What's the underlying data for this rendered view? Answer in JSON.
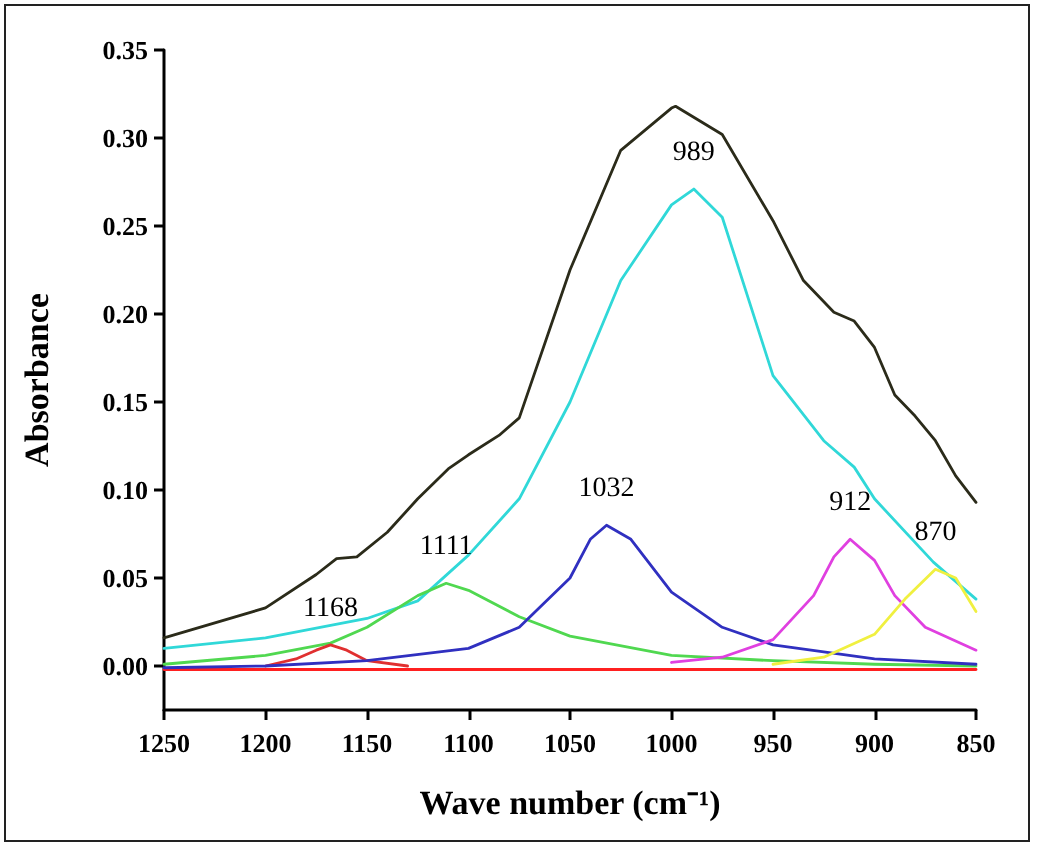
{
  "chart_data": {
    "type": "line",
    "xlabel": "Wave number (cm⁻¹)",
    "ylabel": "Absorbance",
    "xlim": [
      1250,
      850
    ],
    "xticks": [
      1250,
      1200,
      1150,
      1100,
      1050,
      1000,
      950,
      900,
      850
    ],
    "ylim": [
      -0.025,
      0.35
    ],
    "yticks": [
      {
        "value": 0,
        "label": "0.00"
      },
      {
        "value": 0.05,
        "label": "0.05"
      },
      {
        "value": 0.1,
        "label": "0.10"
      },
      {
        "value": 0.15,
        "label": "0.15"
      },
      {
        "value": 0.2,
        "label": "0.20"
      },
      {
        "value": 0.25,
        "label": "0.25"
      },
      {
        "value": 0.3,
        "label": "0.30"
      },
      {
        "value": 0.35,
        "label": "0.35"
      }
    ],
    "grid": false,
    "marker": "none",
    "line_style": "solid",
    "series": [
      {
        "color": "#ff2020",
        "x": [
          1250,
          1150,
          1050,
          950,
          850
        ],
        "values": [
          -0.002,
          -0.002,
          -0.002,
          -0.002,
          -0.002
        ]
      },
      {
        "color": "#30d8d8",
        "x": [
          1250,
          1200,
          1150,
          1125,
          1100,
          1075,
          1050,
          1025,
          1000,
          989,
          975,
          950,
          925,
          910,
          900,
          871,
          850
        ],
        "values": [
          0.01,
          0.016,
          0.027,
          0.037,
          0.063,
          0.095,
          0.15,
          0.219,
          0.262,
          0.271,
          0.255,
          0.165,
          0.128,
          0.113,
          0.095,
          0.059,
          0.038
        ]
      },
      {
        "color": "#50d850",
        "x": [
          1250,
          1200,
          1168,
          1150,
          1125,
          1111,
          1100,
          1075,
          1050,
          1000,
          950,
          900,
          850
        ],
        "values": [
          0.001,
          0.006,
          0.013,
          0.022,
          0.04,
          0.047,
          0.043,
          0.028,
          0.017,
          0.006,
          0.003,
          0.001,
          0.0
        ]
      },
      {
        "color": "#e03030",
        "x": [
          1200,
          1185,
          1175,
          1168,
          1160,
          1150,
          1130
        ],
        "values": [
          0.0,
          0.004,
          0.009,
          0.012,
          0.009,
          0.003,
          0.0
        ]
      },
      {
        "color": "#3030c0",
        "x": [
          1250,
          1200,
          1150,
          1100,
          1075,
          1050,
          1040,
          1032,
          1020,
          1000,
          975,
          950,
          900,
          850
        ],
        "values": [
          -0.001,
          0.0,
          0.003,
          0.01,
          0.022,
          0.05,
          0.072,
          0.08,
          0.072,
          0.042,
          0.022,
          0.012,
          0.004,
          0.001
        ]
      },
      {
        "color": "#e040e0",
        "x": [
          1000,
          975,
          950,
          930,
          920,
          912,
          900,
          890,
          875,
          850
        ],
        "values": [
          0.002,
          0.005,
          0.015,
          0.04,
          0.062,
          0.072,
          0.06,
          0.04,
          0.022,
          0.009
        ]
      },
      {
        "color": "#f0f040",
        "x": [
          950,
          925,
          900,
          885,
          870,
          860,
          850
        ],
        "values": [
          0.001,
          0.005,
          0.018,
          0.038,
          0.055,
          0.05,
          0.031
        ]
      },
      {
        "color": "#2b2b1a",
        "x": [
          1250,
          1200,
          1175,
          1165,
          1155,
          1140,
          1125,
          1110,
          1100,
          1085,
          1075,
          1050,
          1025,
          1000,
          998,
          975,
          950,
          935,
          920,
          910,
          900,
          890,
          880,
          870,
          860,
          850
        ],
        "values": [
          0.016,
          0.033,
          0.052,
          0.061,
          0.062,
          0.076,
          0.095,
          0.112,
          0.12,
          0.131,
          0.141,
          0.225,
          0.293,
          0.317,
          0.318,
          0.302,
          0.253,
          0.219,
          0.201,
          0.196,
          0.181,
          0.154,
          0.142,
          0.128,
          0.108,
          0.093
        ]
      }
    ],
    "annotations": [
      {
        "text": "1168",
        "x": 1168,
        "y": 0.012
      },
      {
        "text": "1111",
        "x": 1111,
        "y": 0.047
      },
      {
        "text": "1032",
        "x": 1032,
        "y": 0.08
      },
      {
        "text": "989",
        "x": 989,
        "y": 0.271
      },
      {
        "text": "912",
        "x": 912,
        "y": 0.072
      },
      {
        "text": "870",
        "x": 870,
        "y": 0.055
      }
    ]
  }
}
